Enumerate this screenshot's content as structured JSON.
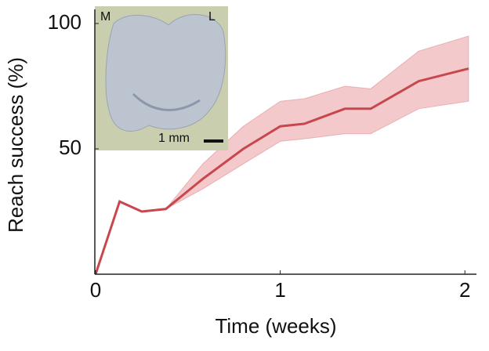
{
  "chart_data": {
    "type": "line",
    "xlabel": "Time (weeks)",
    "ylabel": "Reach success (%)",
    "x": [
      0,
      0.13,
      0.25,
      0.38,
      0.58,
      0.8,
      1.0,
      1.13,
      1.35,
      1.49,
      1.75,
      2.02
    ],
    "values": [
      0,
      29,
      25,
      26,
      38,
      50,
      59,
      60,
      66,
      66,
      77,
      82
    ],
    "upper": [
      null,
      null,
      null,
      26,
      44,
      59,
      69,
      70,
      75,
      74,
      89,
      95
    ],
    "lower": [
      null,
      null,
      null,
      26,
      34,
      44,
      53,
      54,
      56,
      56,
      66,
      69
    ],
    "color": "#c8474d",
    "band_color": "#f3c9cc",
    "xlim": [
      0,
      2.05
    ],
    "xticks": [
      0,
      1,
      2
    ],
    "ylim": [
      0,
      100
    ],
    "yticks": [
      50,
      100
    ],
    "inset": {
      "left_label": "M",
      "right_label": "L",
      "scale_label": "1 mm"
    }
  }
}
